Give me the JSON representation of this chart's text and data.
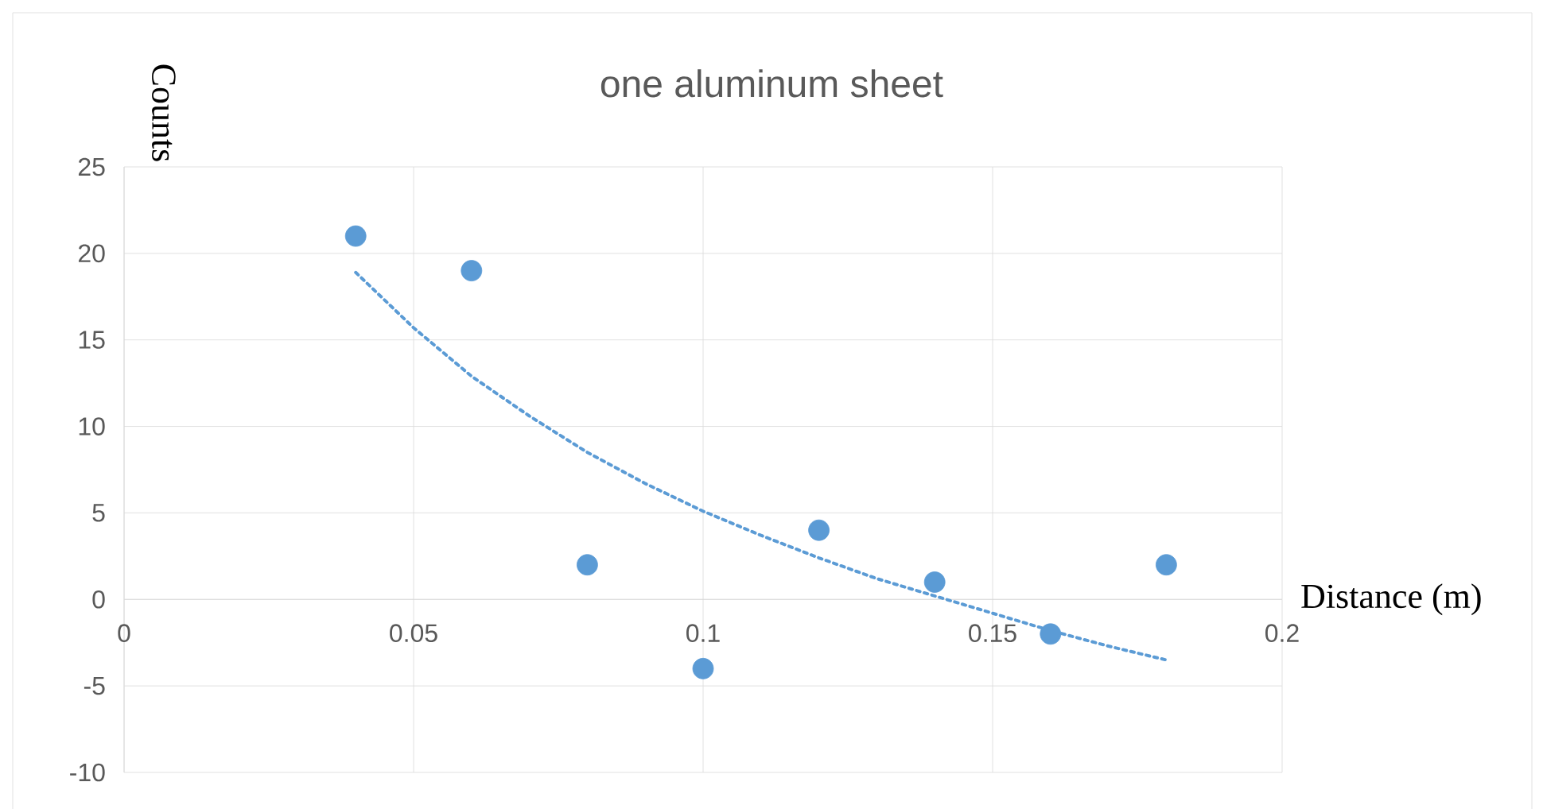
{
  "chart_data": {
    "type": "scatter",
    "title": "one aluminum sheet",
    "xlabel": "Distance (m)",
    "ylabel": "Counts",
    "series": [
      {
        "type": "scatter",
        "color": "#5b9bd5",
        "marker": "circle",
        "x": [
          0.04,
          0.06,
          0.08,
          0.1,
          0.12,
          0.14,
          0.16,
          0.18
        ],
        "values": [
          21,
          19,
          2,
          -4,
          4,
          1,
          -2,
          2
        ]
      },
      {
        "type": "line",
        "color": "#5b9bd5",
        "line_style": "dotted",
        "marker": "none",
        "x": [
          0.04,
          0.05,
          0.06,
          0.07,
          0.08,
          0.09,
          0.1,
          0.11,
          0.12,
          0.13,
          0.14,
          0.15,
          0.16,
          0.17,
          0.18
        ],
        "values": [
          18.9,
          15.7,
          12.9,
          10.6,
          8.5,
          6.7,
          5.1,
          3.7,
          2.4,
          1.2,
          0.2,
          -0.8,
          -1.8,
          -2.7,
          -3.5
        ]
      }
    ],
    "xlim": [
      0,
      0.2
    ],
    "xticks": [
      0,
      0.05,
      0.1,
      0.15,
      0.2
    ],
    "ylim": [
      -10,
      25
    ],
    "yticks": [
      -10,
      -5,
      0,
      5,
      10,
      15,
      20,
      25
    ],
    "grid": true
  }
}
